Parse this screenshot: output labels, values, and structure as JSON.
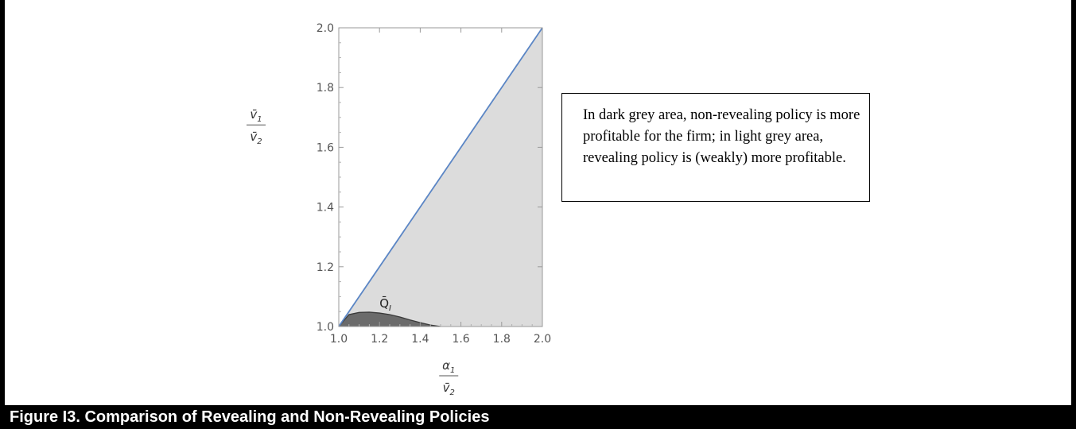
{
  "chart_data": {
    "type": "area",
    "xlim": [
      1.0,
      2.0
    ],
    "ylim": [
      1.0,
      2.0
    ],
    "x_ticks": [
      "1.0",
      "1.2",
      "1.4",
      "1.6",
      "1.8",
      "2.0"
    ],
    "y_ticks": [
      "1.0",
      "1.2",
      "1.4",
      "1.6",
      "1.8",
      "2.0"
    ],
    "xlabel": {
      "numerator": "α",
      "numerator_sub": "1",
      "denominator": "v̄",
      "denominator_sub": "2"
    },
    "ylabel": {
      "numerator": "v̄",
      "numerator_sub": "1",
      "denominator": "v̄",
      "denominator_sub": "2"
    },
    "diagonal": {
      "x": [
        1.0,
        2.0
      ],
      "y": [
        1.0,
        2.0
      ]
    },
    "boundary_curve": {
      "label": "Q̄",
      "label_sub": "I",
      "x": [
        1.0,
        1.05,
        1.1,
        1.15,
        1.2,
        1.25,
        1.3,
        1.35,
        1.4,
        1.45,
        1.5
      ],
      "y": [
        1.0,
        1.04,
        1.047,
        1.048,
        1.045,
        1.04,
        1.032,
        1.022,
        1.013,
        1.005,
        1.0
      ]
    },
    "regions": [
      {
        "name": "non-revealing",
        "color": "#6b6b6b"
      },
      {
        "name": "revealing",
        "color": "#dcdcdc"
      }
    ],
    "line_color": "#5b86c5",
    "grid": false
  },
  "note": {
    "text": "In dark grey area, non-revealing policy is more profitable for the firm; in light grey area, revealing policy is (weakly) more profitable."
  },
  "caption": "Figure I3.  Comparison of Revealing and Non-Revealing Policies"
}
